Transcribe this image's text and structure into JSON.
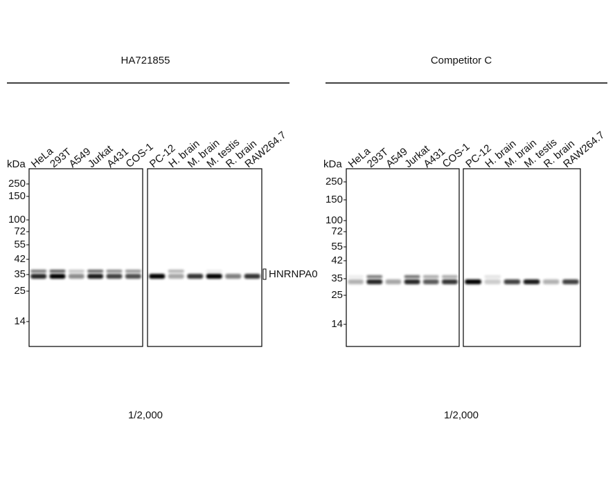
{
  "panels": [
    {
      "title": "HA721855",
      "unit": "kDa",
      "lanes": [
        "HeLa",
        "293T",
        "A549",
        "Jurkat",
        "A431",
        "COS-1",
        "PC-12",
        "H. brain",
        "M. brain",
        "M. testis",
        "R. brain",
        "RAW264.7"
      ],
      "markers": [
        "250",
        "150",
        "100",
        "72",
        "55",
        "42",
        "35",
        "25",
        "14"
      ],
      "target": "HNRNPA0",
      "dilution": "1/2,000"
    },
    {
      "title": "Competitor C",
      "unit": "kDa",
      "lanes": [
        "HeLa",
        "293T",
        "A549",
        "Jurkat",
        "A431",
        "COS-1",
        "PC-12",
        "H. brain",
        "M. brain",
        "M. testis",
        "R. brain",
        "RAW264.7"
      ],
      "markers": [
        "250",
        "150",
        "100",
        "72",
        "55",
        "42",
        "35",
        "25",
        "14"
      ],
      "dilution": "1/2,000"
    }
  ]
}
